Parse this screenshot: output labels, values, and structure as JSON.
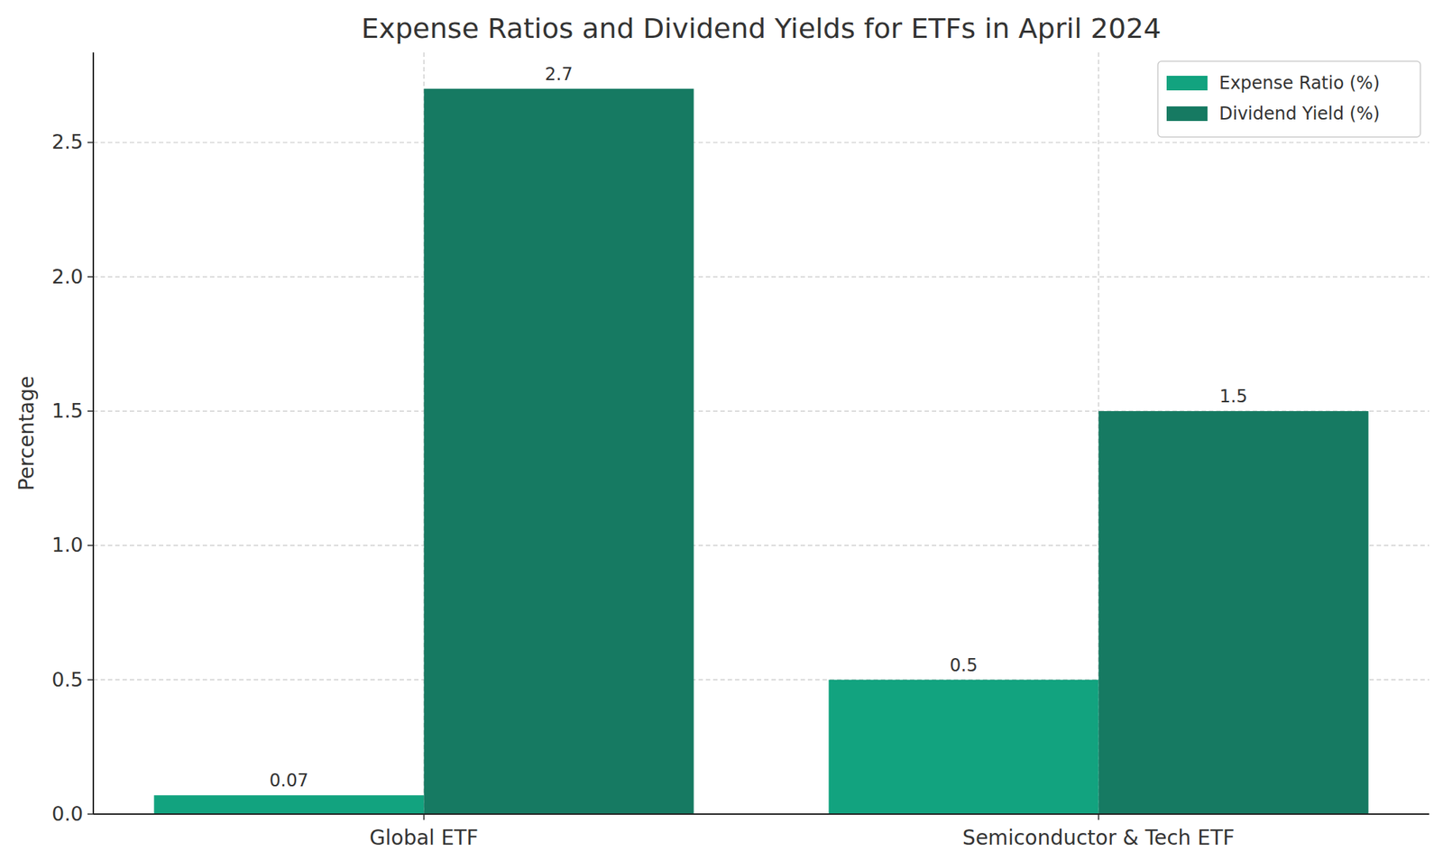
{
  "chart_data": {
    "type": "bar",
    "title": "Expense Ratios and Dividend Yields for ETFs in April 2024",
    "y_label": "Percentage",
    "categories": [
      "Global ETF",
      "Semiconductor & Tech ETF"
    ],
    "series": [
      {
        "name": "Expense Ratio (%)",
        "color": "#12a37f",
        "values": [
          0.07,
          0.5
        ]
      },
      {
        "name": "Dividend Yield (%)",
        "color": "#167a62",
        "values": [
          2.7,
          1.5
        ]
      }
    ],
    "ylim": [
      0,
      2.835
    ],
    "yticks": [
      {
        "value": 0,
        "label": "0.0"
      },
      0.5,
      {
        "value": 1,
        "label": "1.0"
      },
      1.5,
      {
        "value": 2,
        "label": "2.0"
      },
      2.5
    ],
    "grid": true,
    "legend": "upper right",
    "data_labels": true
  }
}
